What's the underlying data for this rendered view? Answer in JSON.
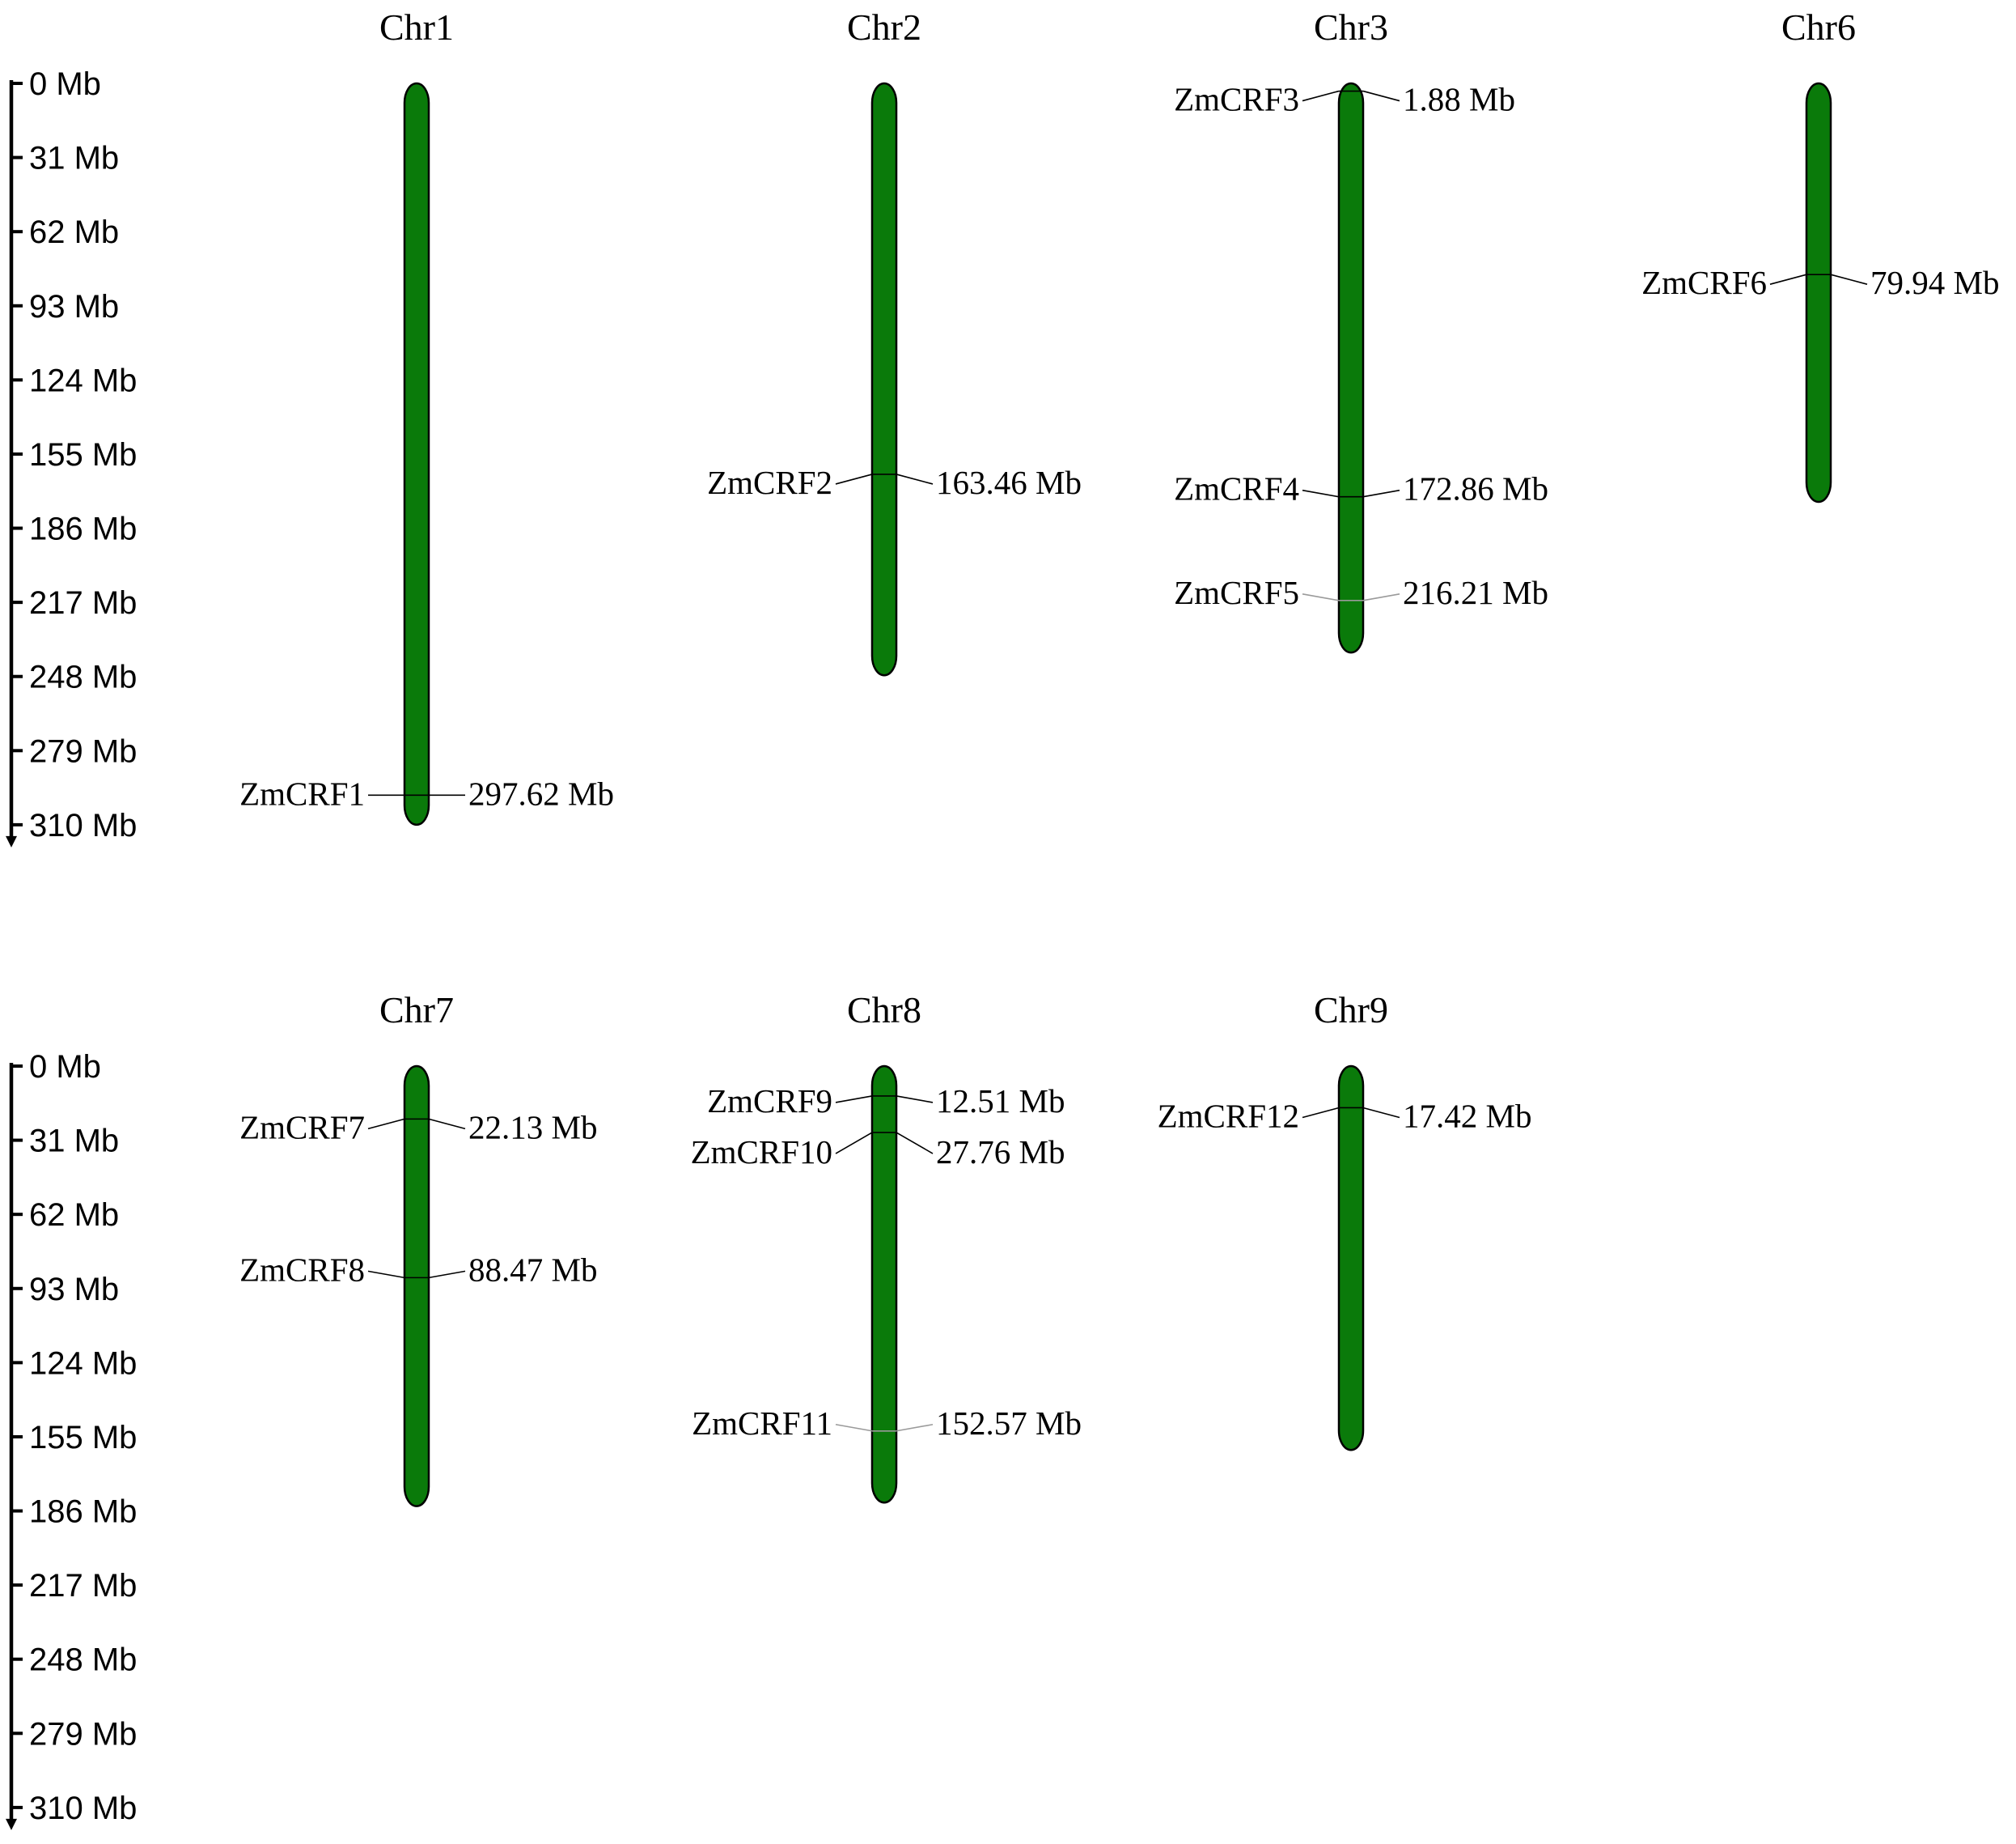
{
  "scale": {
    "max_mb": 310,
    "ticks": [
      "0 Mb",
      "31 Mb",
      "62 Mb",
      "93 Mb",
      "124 Mb",
      "155 Mb",
      "186 Mb",
      "217 Mb",
      "248 Mb",
      "279 Mb",
      "310 Mb"
    ],
    "tick_values": [
      0,
      31,
      62,
      93,
      124,
      155,
      186,
      217,
      248,
      279,
      310
    ]
  },
  "colors": {
    "chromosome_fill": "#0a7a0a",
    "outline": "#000000",
    "connector": "#000000",
    "connector_light": "#9a9a9a"
  },
  "panels": [
    {
      "chromosomes": [
        {
          "name": "Chr1",
          "length_mb": 310,
          "genes": [
            {
              "name": "ZmCRF1",
              "position": "297.62 Mb",
              "mb": 297.62
            }
          ]
        },
        {
          "name": "Chr2",
          "length_mb": 247.5,
          "genes": [
            {
              "name": "ZmCRF2",
              "position": "163.46 Mb",
              "mb": 163.46
            }
          ]
        },
        {
          "name": "Chr3",
          "length_mb": 238,
          "genes": [
            {
              "name": "ZmCRF3",
              "position": "1.88 Mb",
              "mb": 1.88
            },
            {
              "name": "ZmCRF4",
              "position": "172.86 Mb",
              "mb": 172.86
            },
            {
              "name": "ZmCRF5",
              "position": "216.21 Mb",
              "mb": 216.21
            }
          ]
        },
        {
          "name": "Chr6",
          "length_mb": 175,
          "genes": [
            {
              "name": "ZmCRF6",
              "position": "79.94 Mb",
              "mb": 79.94
            }
          ]
        }
      ]
    },
    {
      "chromosomes": [
        {
          "name": "Chr7",
          "length_mb": 184,
          "genes": [
            {
              "name": "ZmCRF7",
              "position": "22.13 Mb",
              "mb": 22.13
            },
            {
              "name": "ZmCRF8",
              "position": "88.47 Mb",
              "mb": 88.47
            }
          ]
        },
        {
          "name": "Chr8",
          "length_mb": 182.5,
          "genes": [
            {
              "name": "ZmCRF9",
              "position": "12.51 Mb",
              "mb": 12.51
            },
            {
              "name": "ZmCRF10",
              "position": "27.76 Mb",
              "mb": 27.76
            },
            {
              "name": "ZmCRF11",
              "position": "152.57 Mb",
              "mb": 152.57
            }
          ]
        },
        {
          "name": "Chr9",
          "length_mb": 160.5,
          "genes": [
            {
              "name": "ZmCRF12",
              "position": "17.42 Mb",
              "mb": 17.42
            }
          ]
        }
      ]
    }
  ]
}
